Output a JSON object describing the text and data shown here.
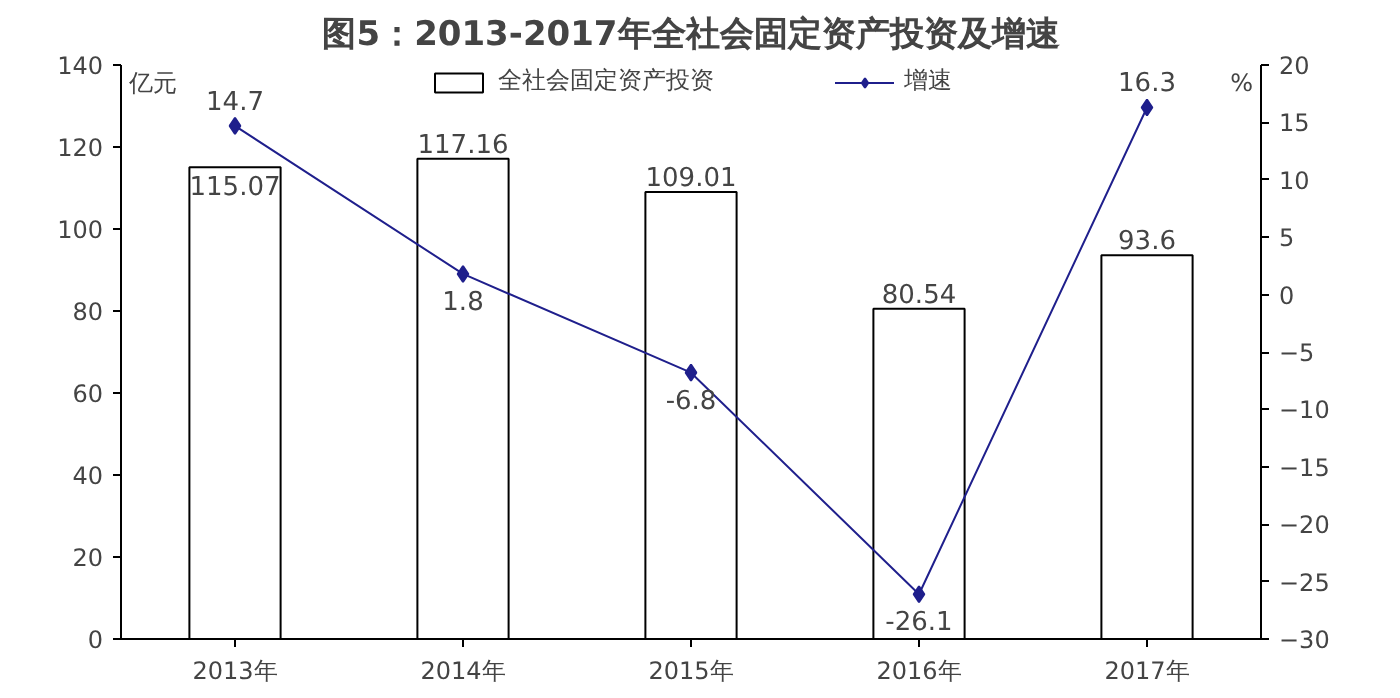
{
  "chart_data": {
    "type": "bar",
    "title": "图5：2013-2017年全社会固定资产投资及增速",
    "ylabel": "亿元",
    "y2label": "%",
    "categories": [
      "2013年",
      "2014年",
      "2015年",
      "2016年",
      "2017年"
    ],
    "series": [
      {
        "name": "全社会固定资产投资",
        "color": "#ffffff",
        "values": [
          115.07,
          117.16,
          109.01,
          80.54,
          93.6
        ]
      },
      {
        "name": "增速",
        "type": "line",
        "axis": "y2",
        "color": "#1f1f8c",
        "marker": "diamond",
        "values": [
          14.7,
          1.8,
          -6.8,
          -26.1,
          16.3
        ]
      }
    ],
    "ylim": [
      0,
      140
    ],
    "yticks": [
      0,
      20,
      40,
      60,
      80,
      100,
      120,
      140
    ],
    "y2lim": [
      -30,
      20
    ],
    "y2ticks": [
      -30,
      -25,
      -20,
      -15,
      -10,
      -5,
      0,
      5,
      10,
      15,
      20
    ],
    "data_labels": true,
    "legend": "top",
    "grid": false
  }
}
